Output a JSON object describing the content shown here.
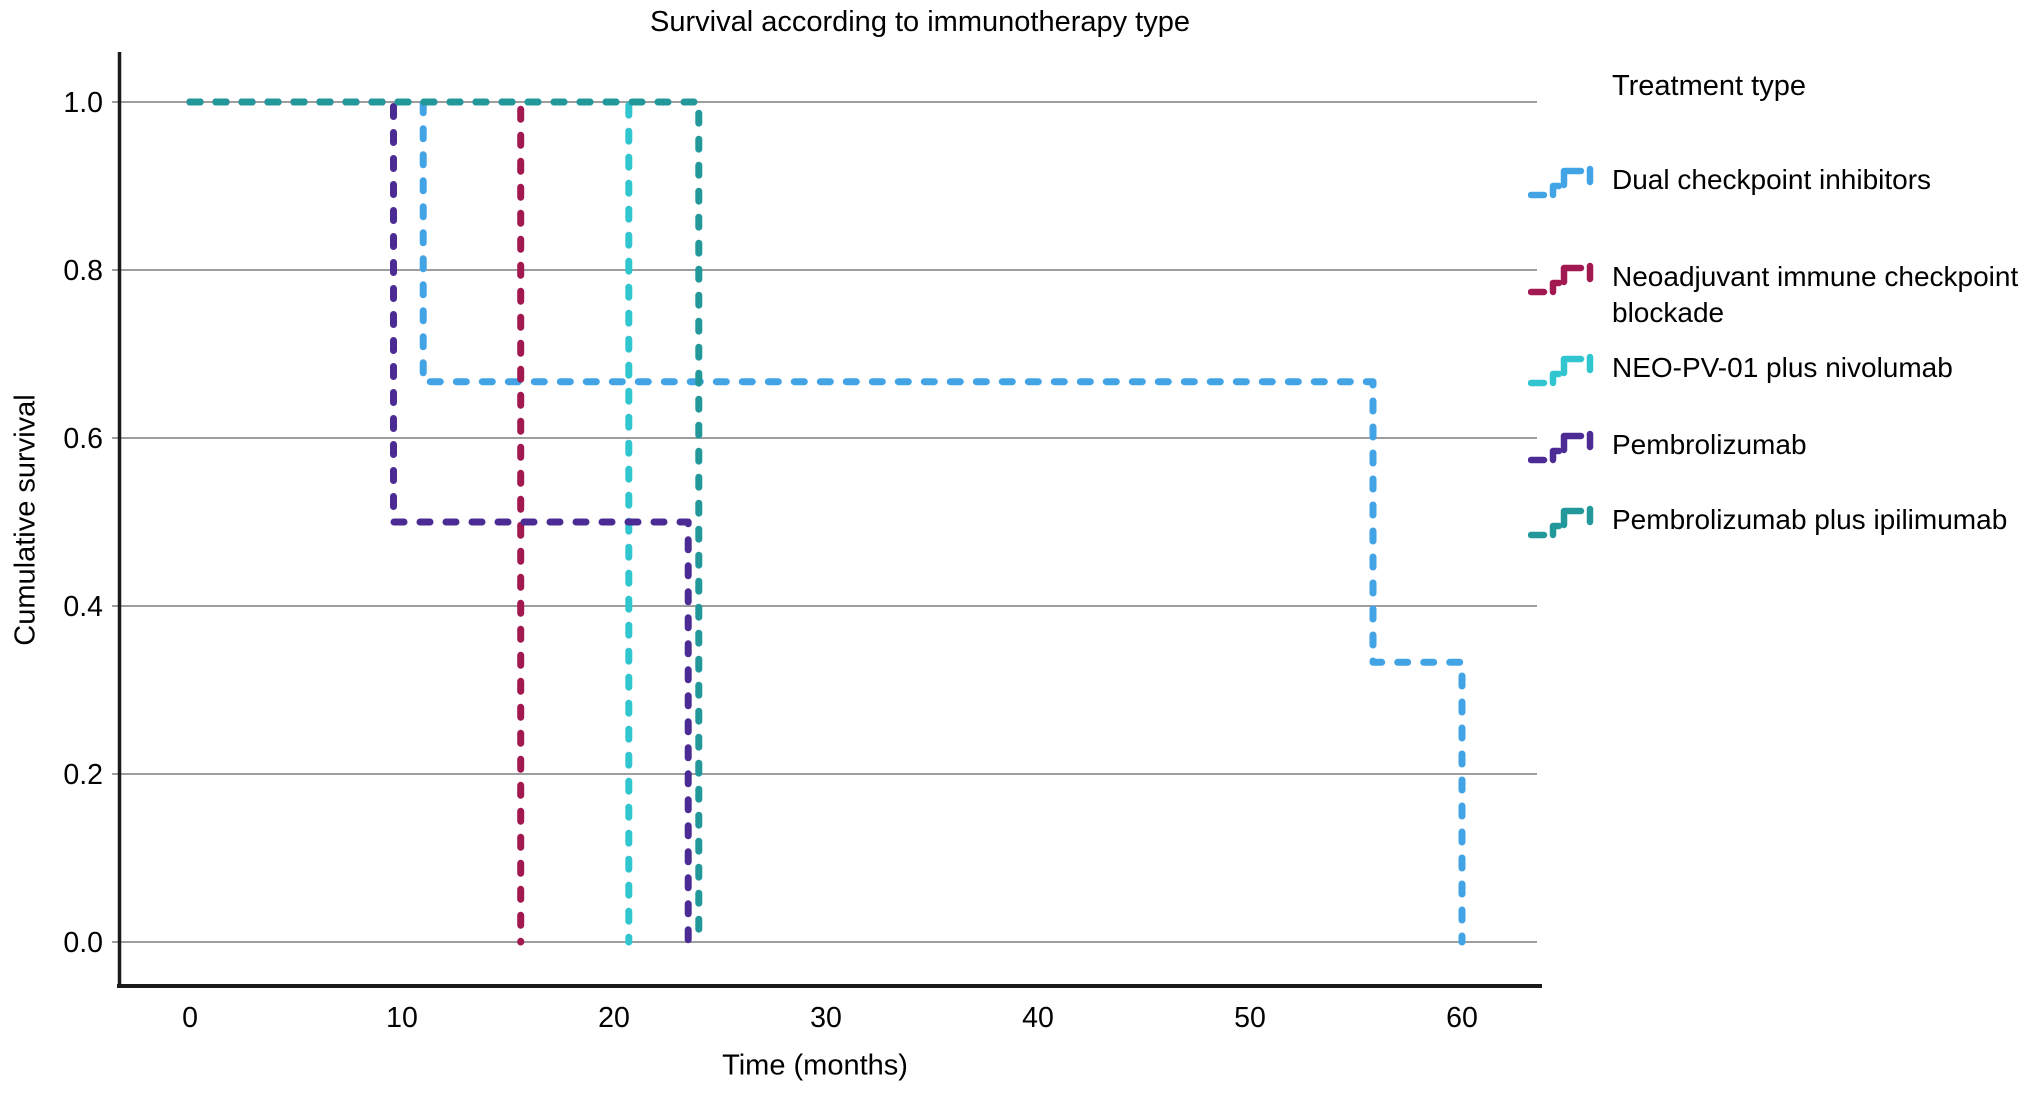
{
  "title": "Survival according to immunotherapy type",
  "axes": {
    "x": {
      "label": "Time (months)",
      "ticks": [
        0,
        10,
        20,
        30,
        40,
        50,
        60
      ]
    },
    "y": {
      "label": "Cumulative survival",
      "ticks": [
        "1.0",
        "0.8",
        "0.6",
        "0.4",
        "0.2",
        "0.0"
      ],
      "tick_values": [
        1.0,
        0.8,
        0.6,
        0.4,
        0.2,
        0.0
      ]
    }
  },
  "legend": {
    "header": "Treatment type",
    "items": [
      {
        "label": "Dual checkpoint inhibitors",
        "color": "#42a3e5"
      },
      {
        "label": "Neoadjuvant immune checkpoint blockade",
        "color": "#a21850"
      },
      {
        "label": "NEO-PV-01 plus nivolumab",
        "color": "#31c5cf"
      },
      {
        "label": "Pembrolizumab",
        "color": "#4d2b94"
      },
      {
        "label": "Pembrolizumab plus ipilimumab",
        "color": "#23989b"
      }
    ]
  },
  "chart_data": {
    "type": "line",
    "subtype": "kaplan-meier-step",
    "title": "Survival according to immunotherapy type",
    "xlabel": "Time (months)",
    "ylabel": "Cumulative survival",
    "xlim": [
      0,
      63.5
    ],
    "ylim": [
      0.0,
      1.0
    ],
    "grid": true,
    "grid_color": "#7f7f7f",
    "legend_position": "right",
    "line_style": "dashed",
    "series": [
      {
        "name": "Dual checkpoint inhibitors",
        "color": "#42a3e5",
        "points": [
          [
            0,
            1.0
          ],
          [
            11,
            1.0
          ],
          [
            11,
            0.667
          ],
          [
            55.8,
            0.667
          ],
          [
            55.8,
            0.333
          ],
          [
            60,
            0.333
          ],
          [
            60,
            0.0
          ]
        ]
      },
      {
        "name": "Neoadjuvant immune checkpoint blockade",
        "color": "#a21850",
        "points": [
          [
            0,
            1.0
          ],
          [
            15.6,
            1.0
          ],
          [
            15.6,
            0.0
          ]
        ]
      },
      {
        "name": "NEO-PV-01 plus nivolumab",
        "color": "#31c5cf",
        "points": [
          [
            0,
            1.0
          ],
          [
            20.7,
            1.0
          ],
          [
            20.7,
            0.0
          ]
        ]
      },
      {
        "name": "Pembrolizumab",
        "color": "#4d2b94",
        "points": [
          [
            0,
            1.0
          ],
          [
            9.6,
            1.0
          ],
          [
            9.6,
            0.5
          ],
          [
            23.5,
            0.5
          ],
          [
            23.5,
            0.0
          ]
        ]
      },
      {
        "name": "Pembrolizumab plus ipilimumab",
        "color": "#23989b",
        "points": [
          [
            0,
            1.0
          ],
          [
            24,
            1.0
          ],
          [
            24,
            0.0
          ]
        ]
      }
    ]
  }
}
